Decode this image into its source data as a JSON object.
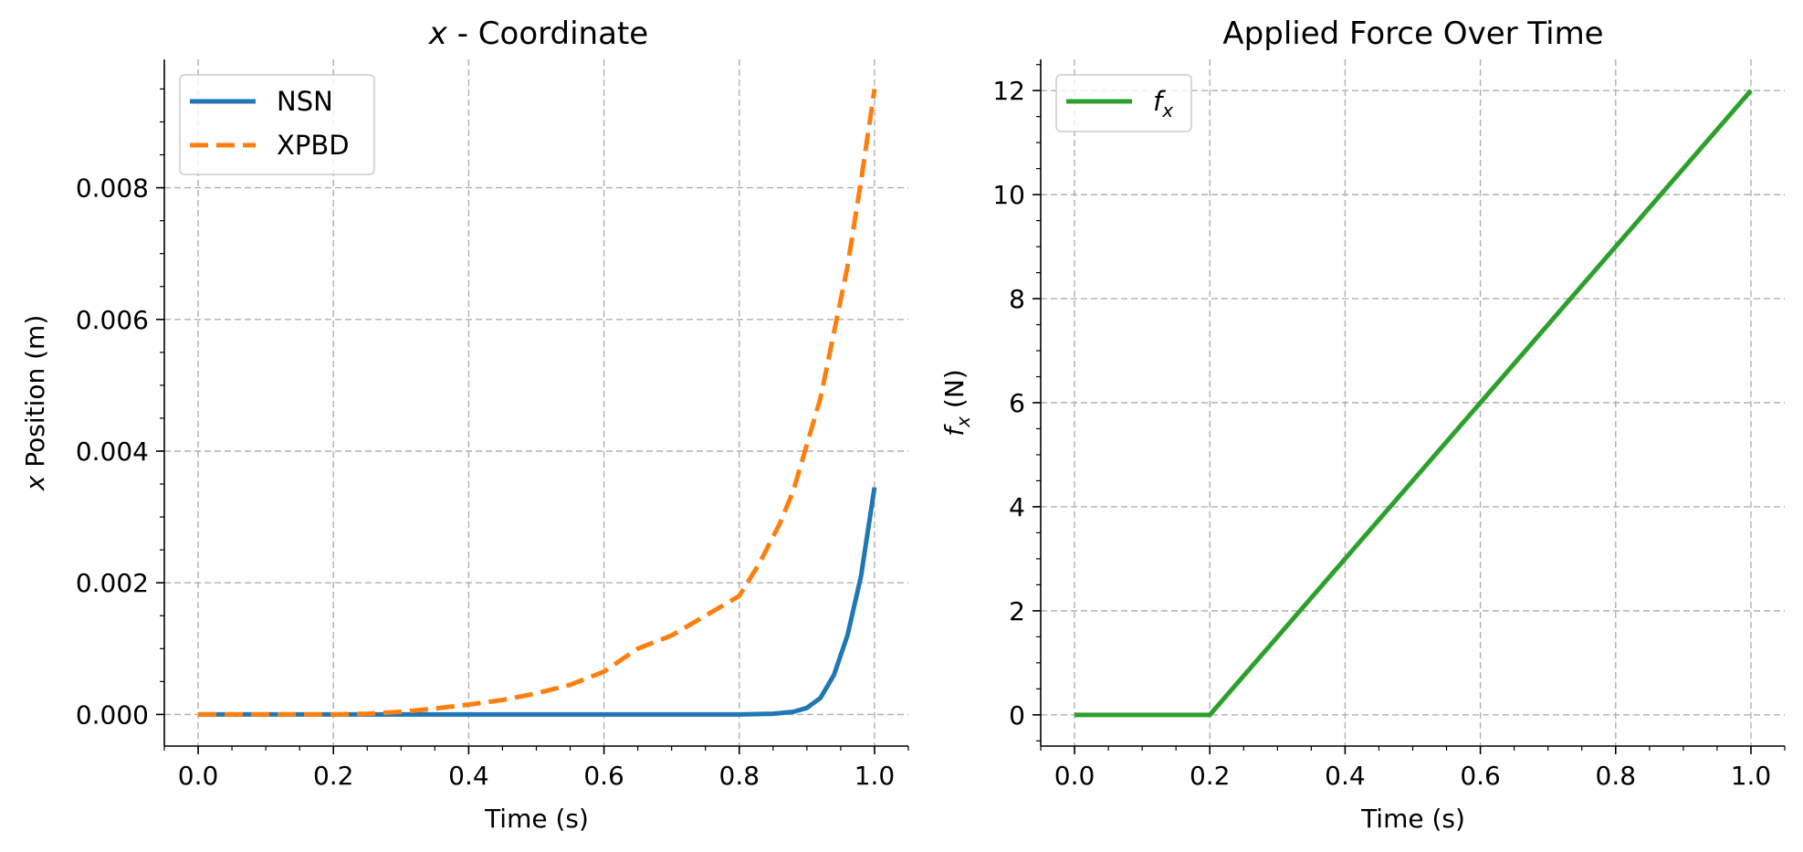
{
  "chart_data": [
    {
      "type": "line",
      "title_prefix": "x",
      "title_suffix": " - Coordinate",
      "xlabel": "Time (s)",
      "ylabel_prefix": "x",
      "ylabel_suffix": " Position (m)",
      "xlim": [
        -0.05,
        1.05
      ],
      "ylim": [
        -0.00048,
        0.00995
      ],
      "xticks": [
        0.0,
        0.2,
        0.4,
        0.6,
        0.8,
        1.0
      ],
      "xtick_labels": [
        "0.0",
        "0.2",
        "0.4",
        "0.6",
        "0.8",
        "1.0"
      ],
      "yticks": [
        0.0,
        0.002,
        0.004,
        0.006,
        0.008
      ],
      "ytick_labels": [
        "0.000",
        "0.002",
        "0.004",
        "0.006",
        "0.008"
      ],
      "grid": true,
      "legend_position": "top-left",
      "series": [
        {
          "name": "NSN",
          "color": "#1f77b4",
          "style": "solid",
          "x": [
            0.0,
            0.1,
            0.2,
            0.3,
            0.4,
            0.5,
            0.6,
            0.7,
            0.8,
            0.85,
            0.88,
            0.9,
            0.92,
            0.94,
            0.96,
            0.98,
            1.0
          ],
          "y": [
            0.0,
            0.0,
            0.0,
            0.0,
            0.0,
            0.0,
            0.0,
            0.0,
            0.0,
            1e-05,
            4e-05,
            0.0001,
            0.00025,
            0.0006,
            0.0012,
            0.0021,
            0.00345
          ]
        },
        {
          "name": "XPBD",
          "color": "#ff7f0e",
          "style": "dashed",
          "x": [
            0.0,
            0.1,
            0.2,
            0.25,
            0.3,
            0.35,
            0.4,
            0.45,
            0.5,
            0.55,
            0.6,
            0.65,
            0.7,
            0.75,
            0.8,
            0.83,
            0.86,
            0.88,
            0.9,
            0.92,
            0.94,
            0.96,
            0.98,
            0.99,
            1.0
          ],
          "y": [
            0.0,
            0.0,
            0.0,
            1e-05,
            4e-05,
            9e-05,
            0.00015,
            0.00022,
            0.00032,
            0.00045,
            0.00065,
            0.001,
            0.0012,
            0.0015,
            0.0018,
            0.0023,
            0.0029,
            0.0034,
            0.0041,
            0.0048,
            0.0058,
            0.0068,
            0.0081,
            0.0088,
            0.0095
          ]
        }
      ]
    },
    {
      "type": "line",
      "title": "Applied Force Over Time",
      "xlabel": "Time (s)",
      "ylabel_base": "f",
      "ylabel_sub": "x",
      "ylabel_suffix": " (N)",
      "xlim": [
        -0.05,
        1.05
      ],
      "ylim": [
        -0.6,
        12.6
      ],
      "xticks": [
        0.0,
        0.2,
        0.4,
        0.6,
        0.8,
        1.0
      ],
      "xtick_labels": [
        "0.0",
        "0.2",
        "0.4",
        "0.6",
        "0.8",
        "1.0"
      ],
      "yticks": [
        0,
        2,
        4,
        6,
        8,
        10,
        12
      ],
      "ytick_labels": [
        "0",
        "2",
        "4",
        "6",
        "8",
        "10",
        "12"
      ],
      "grid": true,
      "legend_position": "top-left",
      "series": [
        {
          "name_base": "f",
          "name_sub": "x",
          "color": "#2ca02c",
          "style": "solid",
          "x": [
            0.0,
            0.2,
            1.0
          ],
          "y": [
            0.0,
            0.0,
            12.0
          ]
        }
      ]
    }
  ]
}
